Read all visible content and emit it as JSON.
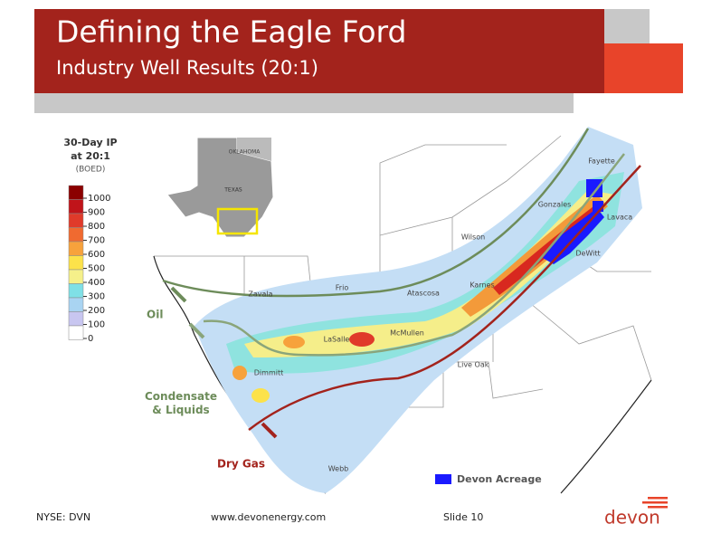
{
  "header": {
    "title": "Defining the Eagle Ford",
    "subtitle": "Industry Well Results (20:1)"
  },
  "legend": {
    "title_lines": [
      "30-Day IP",
      "at 20:1",
      "(BOED)"
    ],
    "ticks": [
      "1000",
      "900",
      "800",
      "700",
      "600",
      "500",
      "400",
      "300",
      "200",
      "100",
      "0"
    ],
    "colors": [
      "#8b0000",
      "#c0141a",
      "#e03a2a",
      "#f06a30",
      "#f7a23c",
      "#fce24a",
      "#f5f08a",
      "#7fe0e6",
      "#a9d4f2",
      "#c8c6f0",
      "#ffffff"
    ]
  },
  "inset": {
    "labels": [
      "OKLAHOMA",
      "TEXAS"
    ]
  },
  "counties": [
    "Fayette",
    "Gonzales",
    "Lavaca",
    "Wilson",
    "DeWitt",
    "Frio",
    "Atascosa",
    "Karnes",
    "Zavala",
    "LaSalle",
    "McMullen",
    "Live Oak",
    "Dimmitt",
    "Webb"
  ],
  "annotations": {
    "oil": "Oil",
    "condensate": "Condensate\n& Liquids",
    "dry_gas": "Dry Gas",
    "acreage": "Devon Acreage"
  },
  "footer": {
    "ticker": "NYSE: DVN",
    "url": "www.devonenergy.com",
    "slide": "Slide 10",
    "logo": "devon"
  }
}
